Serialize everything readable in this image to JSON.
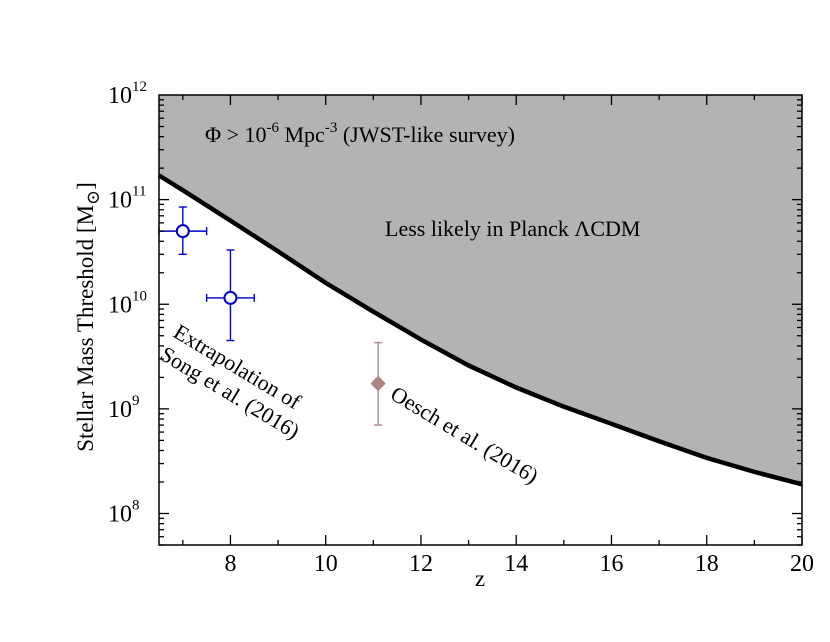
{
  "chart_data": {
    "type": "line",
    "x_axis": {
      "label": "z",
      "range": [
        6.5,
        20
      ],
      "ticks": [
        8,
        10,
        12,
        14,
        16,
        18,
        20
      ],
      "scale": "linear"
    },
    "y_axis": {
      "label_main": "Stellar Mass Threshold [M",
      "label_sub": "⊙",
      "label_close": "]",
      "range": [
        50000000.0,
        1000000000000.0
      ],
      "scale": "log",
      "ticks": [
        {
          "value": 100000000.0,
          "base": "10",
          "exp": "8"
        },
        {
          "value": 1000000000.0,
          "base": "10",
          "exp": "9"
        },
        {
          "value": 10000000000.0,
          "base": "10",
          "exp": "10"
        },
        {
          "value": 100000000000.0,
          "base": "10",
          "exp": "11"
        },
        {
          "value": 1000000000000.0,
          "base": "10",
          "exp": "12"
        }
      ]
    },
    "threshold_curve": {
      "x": [
        6.5,
        7,
        8,
        9,
        10,
        11,
        12,
        13,
        14,
        15,
        16,
        17,
        18,
        19,
        20
      ],
      "y": [
        170000000000.0,
        123000000000.0,
        63000000000.0,
        32000000000.0,
        16000000000.0,
        8500000000.0,
        4600000000.0,
        2600000000.0,
        1600000000.0,
        1050000000.0,
        720000000.0,
        490000000.0,
        340000000.0,
        250000000.0,
        190000000.0
      ],
      "fill_color": "#b3b3b3",
      "line_color": "#000000"
    },
    "series": [
      {
        "marker": "open-circle",
        "color": "#0000cc",
        "points": [
          {
            "x": 7.0,
            "y": 50000000000.0,
            "xerr": 0.5,
            "ylo": 30000000000.0,
            "yhi": 85000000000.0
          },
          {
            "x": 8.0,
            "y": 11500000000.0,
            "xerr": 0.5,
            "ylo": 4500000000.0,
            "yhi": 33000000000.0
          }
        ]
      },
      {
        "marker": "diamond",
        "color": "#b08484",
        "points": [
          {
            "x": 11.1,
            "y": 1750000000.0,
            "xerr": 0,
            "ylo": 700000000.0,
            "yhi": 4300000000.0
          }
        ]
      }
    ],
    "annotations": {
      "survey_phi": "Φ > 10",
      "survey_exp": "-6",
      "survey_unit": " Mpc",
      "survey_unit_exp": "-3",
      "survey_rest": " (JWST-like survey)",
      "planck": "Less likely in Planck ΛCDM",
      "extrap_line1": "Extrapolation of",
      "extrap_line2": "Song et al. (2016)",
      "oesch": "Oesch et al. (2016)"
    },
    "grid": false
  }
}
